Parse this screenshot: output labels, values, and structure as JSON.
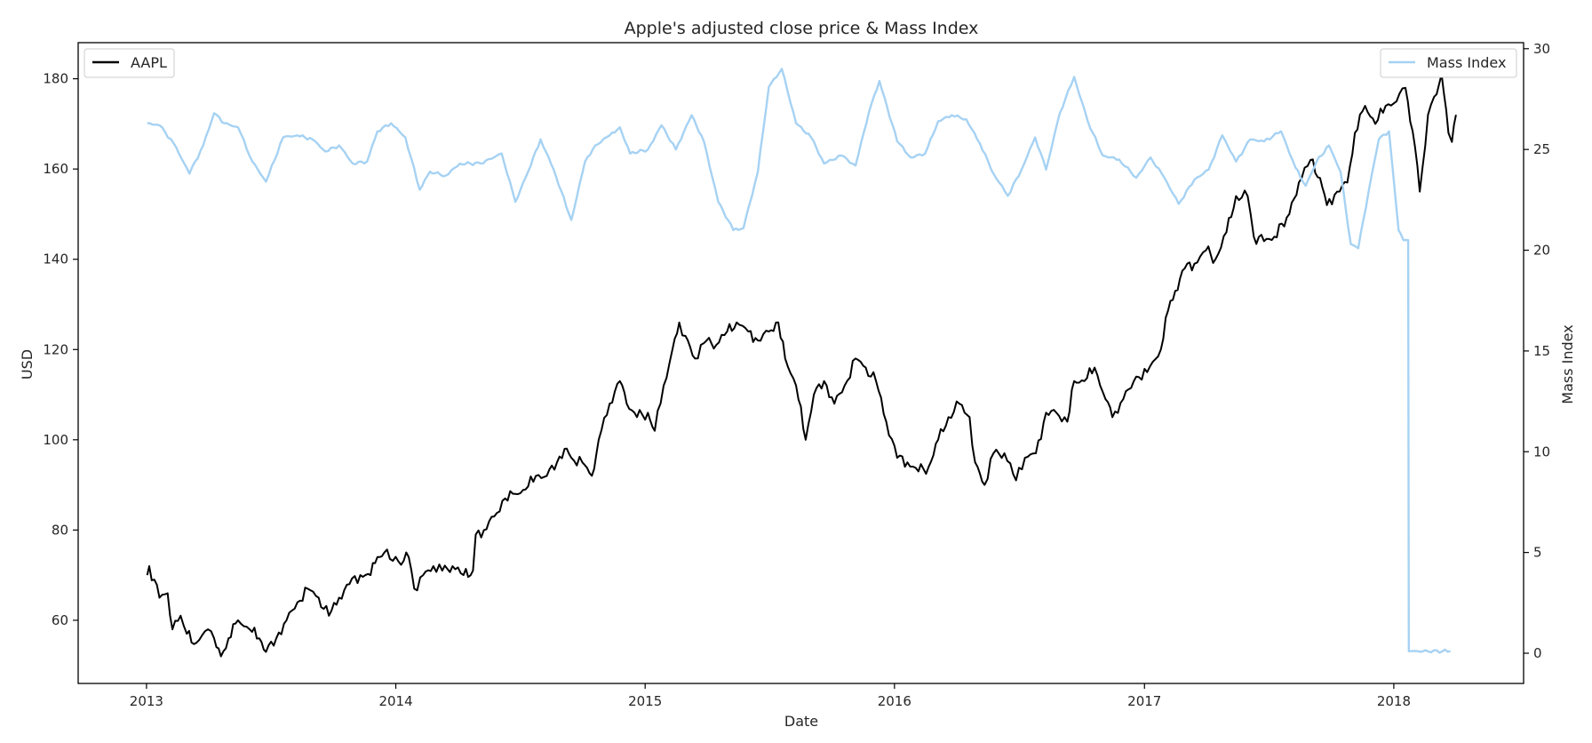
{
  "chart_data": {
    "type": "line",
    "title": "Apple's adjusted close price & Mass Index",
    "xlabel": "Date",
    "ylabel": "USD",
    "y2label": "Mass Index",
    "xlim": [
      "2012-09-23",
      "2018-07-10"
    ],
    "ylim": [
      46,
      188
    ],
    "y2lim": [
      -1.5,
      30.3
    ],
    "x_ticks": [
      "2013",
      "2014",
      "2015",
      "2016",
      "2017",
      "2018"
    ],
    "y_ticks": [
      60,
      80,
      100,
      120,
      140,
      160,
      180
    ],
    "y2_ticks": [
      0,
      5,
      10,
      15,
      20,
      25,
      30
    ],
    "grid": false,
    "legend": [
      {
        "label": "AAPL",
        "placement": "top-left",
        "color": "#000000"
      },
      {
        "label": "Mass Index",
        "placement": "top-right",
        "color": "#a6d2f3"
      }
    ],
    "series": [
      {
        "name": "AAPL",
        "axis": "left",
        "color": "#000000",
        "points": [
          [
            "2013-01-02",
            70
          ],
          [
            "2013-01-05",
            72
          ],
          [
            "2013-01-20",
            65
          ],
          [
            "2013-02-01",
            66
          ],
          [
            "2013-02-08",
            58
          ],
          [
            "2013-02-20",
            61
          ],
          [
            "2013-03-01",
            57
          ],
          [
            "2013-03-15",
            55
          ],
          [
            "2013-04-01",
            58
          ],
          [
            "2013-04-10",
            56
          ],
          [
            "2013-04-20",
            52
          ],
          [
            "2013-05-01",
            56
          ],
          [
            "2013-05-15",
            60
          ],
          [
            "2013-06-01",
            58
          ],
          [
            "2013-06-15",
            56
          ],
          [
            "2013-06-25",
            53
          ],
          [
            "2013-07-10",
            56
          ],
          [
            "2013-07-25",
            60
          ],
          [
            "2013-08-10",
            64
          ],
          [
            "2013-08-25",
            67
          ],
          [
            "2013-09-10",
            65
          ],
          [
            "2013-09-25",
            61
          ],
          [
            "2013-10-10",
            65
          ],
          [
            "2013-10-25",
            68
          ],
          [
            "2013-11-10",
            70
          ],
          [
            "2013-11-25",
            70
          ],
          [
            "2013-12-05",
            74
          ],
          [
            "2013-12-15",
            75
          ],
          [
            "2014-01-05",
            73
          ],
          [
            "2014-01-20",
            74
          ],
          [
            "2014-01-28",
            67
          ],
          [
            "2014-02-10",
            70
          ],
          [
            "2014-02-25",
            72
          ],
          [
            "2014-03-10",
            71
          ],
          [
            "2014-03-25",
            72
          ],
          [
            "2014-04-10",
            70
          ],
          [
            "2014-04-24",
            71
          ],
          [
            "2014-04-28",
            79
          ],
          [
            "2014-05-10",
            80
          ],
          [
            "2014-05-25",
            83
          ],
          [
            "2014-06-10",
            87
          ],
          [
            "2014-06-25",
            88
          ],
          [
            "2014-07-10",
            89
          ],
          [
            "2014-07-25",
            92
          ],
          [
            "2014-08-10",
            92
          ],
          [
            "2014-08-25",
            95
          ],
          [
            "2014-09-05",
            98
          ],
          [
            "2014-09-15",
            96
          ],
          [
            "2014-10-01",
            95
          ],
          [
            "2014-10-15",
            92
          ],
          [
            "2014-10-25",
            100
          ],
          [
            "2014-11-10",
            108
          ],
          [
            "2014-11-25",
            113
          ],
          [
            "2014-12-05",
            108
          ],
          [
            "2014-12-20",
            105
          ],
          [
            "2015-01-05",
            106
          ],
          [
            "2015-01-15",
            102
          ],
          [
            "2015-01-28",
            112
          ],
          [
            "2015-02-10",
            120
          ],
          [
            "2015-02-20",
            126
          ],
          [
            "2015-03-01",
            123
          ],
          [
            "2015-03-15",
            118
          ],
          [
            "2015-04-01",
            122
          ],
          [
            "2015-04-15",
            121
          ],
          [
            "2015-05-01",
            124
          ],
          [
            "2015-05-15",
            126
          ],
          [
            "2015-06-01",
            124
          ],
          [
            "2015-06-15",
            122
          ],
          [
            "2015-07-01",
            124
          ],
          [
            "2015-07-15",
            126
          ],
          [
            "2015-07-25",
            118
          ],
          [
            "2015-08-10",
            112
          ],
          [
            "2015-08-24",
            100
          ],
          [
            "2015-09-05",
            110
          ],
          [
            "2015-09-20",
            113
          ],
          [
            "2015-10-05",
            108
          ],
          [
            "2015-10-20",
            112
          ],
          [
            "2015-11-05",
            118
          ],
          [
            "2015-11-20",
            116
          ],
          [
            "2015-12-05",
            113
          ],
          [
            "2015-12-20",
            104
          ],
          [
            "2016-01-05",
            96
          ],
          [
            "2016-01-20",
            95
          ],
          [
            "2016-02-05",
            93
          ],
          [
            "2016-02-20",
            94
          ],
          [
            "2016-03-05",
            100
          ],
          [
            "2016-03-20",
            105
          ],
          [
            "2016-04-05",
            108
          ],
          [
            "2016-04-20",
            105
          ],
          [
            "2016-04-28",
            95
          ],
          [
            "2016-05-12",
            90
          ],
          [
            "2016-05-25",
            97
          ],
          [
            "2016-06-10",
            97
          ],
          [
            "2016-06-27",
            91
          ],
          [
            "2016-07-10",
            96
          ],
          [
            "2016-07-26",
            97
          ],
          [
            "2016-08-10",
            106
          ],
          [
            "2016-08-25",
            106
          ],
          [
            "2016-09-10",
            104
          ],
          [
            "2016-09-20",
            113
          ],
          [
            "2016-10-05",
            113
          ],
          [
            "2016-10-20",
            116
          ],
          [
            "2016-11-05",
            109
          ],
          [
            "2016-11-15",
            105
          ],
          [
            "2016-12-01",
            109
          ],
          [
            "2016-12-20",
            114
          ],
          [
            "2017-01-05",
            115
          ],
          [
            "2017-01-25",
            120
          ],
          [
            "2017-02-01",
            127
          ],
          [
            "2017-02-15",
            133
          ],
          [
            "2017-03-01",
            138
          ],
          [
            "2017-03-15",
            139
          ],
          [
            "2017-04-01",
            142
          ],
          [
            "2017-04-15",
            140
          ],
          [
            "2017-05-01",
            146
          ],
          [
            "2017-05-15",
            154
          ],
          [
            "2017-06-01",
            154
          ],
          [
            "2017-06-10",
            145
          ],
          [
            "2017-06-25",
            144
          ],
          [
            "2017-07-10",
            145
          ],
          [
            "2017-08-01",
            150
          ],
          [
            "2017-08-15",
            157
          ],
          [
            "2017-09-01",
            162
          ],
          [
            "2017-09-15",
            158
          ],
          [
            "2017-09-25",
            152
          ],
          [
            "2017-10-10",
            155
          ],
          [
            "2017-10-25",
            157
          ],
          [
            "2017-11-05",
            168
          ],
          [
            "2017-11-20",
            174
          ],
          [
            "2017-12-05",
            170
          ],
          [
            "2017-12-20",
            174
          ],
          [
            "2018-01-05",
            175
          ],
          [
            "2018-01-18",
            178
          ],
          [
            "2018-02-01",
            165
          ],
          [
            "2018-02-08",
            155
          ],
          [
            "2018-02-20",
            172
          ],
          [
            "2018-03-01",
            176
          ],
          [
            "2018-03-12",
            181
          ],
          [
            "2018-03-22",
            168
          ],
          [
            "2018-03-27",
            166
          ],
          [
            "2018-04-02",
            172
          ]
        ]
      },
      {
        "name": "Mass Index",
        "axis": "right",
        "color": "#a6d2f3",
        "points": [
          [
            "2013-01-02",
            26.3
          ],
          [
            "2013-01-20",
            26.2
          ],
          [
            "2013-02-10",
            25.3
          ],
          [
            "2013-03-05",
            23.8
          ],
          [
            "2013-03-25",
            25.2
          ],
          [
            "2013-04-10",
            26.8
          ],
          [
            "2013-04-25",
            26.3
          ],
          [
            "2013-05-15",
            26.1
          ],
          [
            "2013-06-05",
            24.4
          ],
          [
            "2013-06-25",
            23.4
          ],
          [
            "2013-07-20",
            25.6
          ],
          [
            "2013-08-10",
            25.7
          ],
          [
            "2013-09-01",
            25.5
          ],
          [
            "2013-09-20",
            24.9
          ],
          [
            "2013-10-10",
            25.2
          ],
          [
            "2013-10-30",
            24.3
          ],
          [
            "2013-11-20",
            24.4
          ],
          [
            "2013-12-05",
            25.9
          ],
          [
            "2013-12-25",
            26.3
          ],
          [
            "2014-01-15",
            25.6
          ],
          [
            "2014-02-05",
            23.0
          ],
          [
            "2014-02-20",
            23.9
          ],
          [
            "2014-03-15",
            23.7
          ],
          [
            "2014-04-05",
            24.3
          ],
          [
            "2014-05-05",
            24.3
          ],
          [
            "2014-06-05",
            24.8
          ],
          [
            "2014-06-25",
            22.4
          ],
          [
            "2014-07-10",
            23.6
          ],
          [
            "2014-08-01",
            25.5
          ],
          [
            "2014-08-20",
            24.0
          ],
          [
            "2014-09-15",
            21.5
          ],
          [
            "2014-10-05",
            24.4
          ],
          [
            "2014-10-20",
            25.2
          ],
          [
            "2014-11-10",
            25.7
          ],
          [
            "2014-11-25",
            26.1
          ],
          [
            "2014-12-10",
            24.8
          ],
          [
            "2015-01-05",
            25.0
          ],
          [
            "2015-01-25",
            26.2
          ],
          [
            "2015-02-15",
            25.0
          ],
          [
            "2015-03-10",
            26.7
          ],
          [
            "2015-03-28",
            25.4
          ],
          [
            "2015-04-18",
            22.4
          ],
          [
            "2015-05-10",
            21.0
          ],
          [
            "2015-05-25",
            21.1
          ],
          [
            "2015-06-15",
            23.9
          ],
          [
            "2015-07-01",
            28.1
          ],
          [
            "2015-07-20",
            29.0
          ],
          [
            "2015-08-10",
            26.3
          ],
          [
            "2015-09-01",
            25.6
          ],
          [
            "2015-09-20",
            24.3
          ],
          [
            "2015-10-15",
            24.7
          ],
          [
            "2015-11-05",
            24.2
          ],
          [
            "2015-11-25",
            26.9
          ],
          [
            "2015-12-10",
            28.4
          ],
          [
            "2016-01-05",
            25.4
          ],
          [
            "2016-01-25",
            24.6
          ],
          [
            "2016-02-15",
            24.8
          ],
          [
            "2016-03-05",
            26.4
          ],
          [
            "2016-03-25",
            26.7
          ],
          [
            "2016-04-15",
            26.5
          ],
          [
            "2016-05-05",
            25.3
          ],
          [
            "2016-05-25",
            23.8
          ],
          [
            "2016-06-15",
            22.7
          ],
          [
            "2016-07-05",
            24.0
          ],
          [
            "2016-07-25",
            25.6
          ],
          [
            "2016-08-10",
            24.0
          ],
          [
            "2016-08-30",
            26.8
          ],
          [
            "2016-09-20",
            28.6
          ],
          [
            "2016-10-10",
            26.4
          ],
          [
            "2016-11-01",
            24.7
          ],
          [
            "2016-11-25",
            24.5
          ],
          [
            "2016-12-20",
            23.6
          ],
          [
            "2017-01-10",
            24.6
          ],
          [
            "2017-01-30",
            23.6
          ],
          [
            "2017-02-20",
            22.3
          ],
          [
            "2017-03-15",
            23.5
          ],
          [
            "2017-04-05",
            24.0
          ],
          [
            "2017-04-25",
            25.7
          ],
          [
            "2017-05-15",
            24.4
          ],
          [
            "2017-06-05",
            25.5
          ],
          [
            "2017-06-25",
            25.4
          ],
          [
            "2017-07-20",
            25.9
          ],
          [
            "2017-08-10",
            24.1
          ],
          [
            "2017-08-25",
            23.2
          ],
          [
            "2017-09-10",
            24.4
          ],
          [
            "2017-09-28",
            25.2
          ],
          [
            "2017-10-15",
            23.9
          ],
          [
            "2017-10-30",
            20.3
          ],
          [
            "2017-11-10",
            20.1
          ],
          [
            "2017-11-25",
            22.9
          ],
          [
            "2017-12-10",
            25.5
          ],
          [
            "2017-12-25",
            25.9
          ],
          [
            "2018-01-08",
            21.0
          ],
          [
            "2018-01-15",
            20.5
          ],
          [
            "2018-01-22",
            20.5
          ],
          [
            "2018-01-23",
            0.1
          ],
          [
            "2018-03-25",
            0.1
          ]
        ]
      }
    ]
  }
}
